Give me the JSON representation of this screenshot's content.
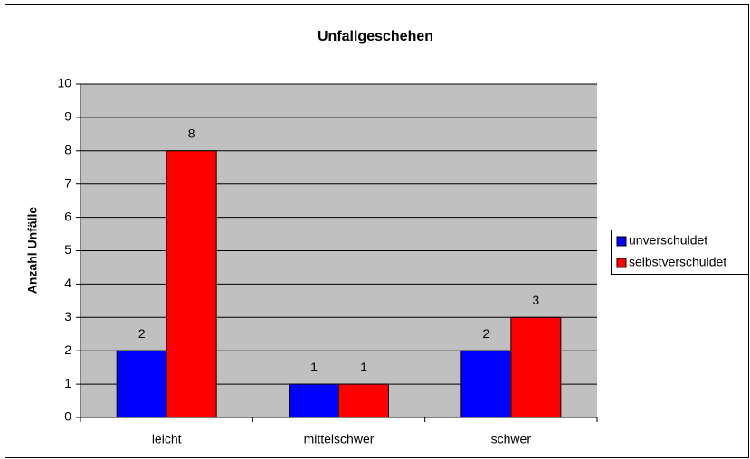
{
  "chart_data": {
    "type": "bar",
    "title": "Unfallgeschehen",
    "y_label": "Anzahl Unfälle",
    "categories": [
      "leicht",
      "mittelschwer",
      "schwer"
    ],
    "series": [
      {
        "name": "unverschuldet",
        "color": "#0000ff",
        "values": [
          2,
          1,
          2
        ]
      },
      {
        "name": "selbstverschuldet",
        "color": "#ff0000",
        "values": [
          8,
          1,
          3
        ]
      }
    ],
    "ylim": [
      0,
      10
    ],
    "yticks": [
      0,
      1,
      2,
      3,
      4,
      5,
      6,
      7,
      8,
      9,
      10
    ],
    "grid": true,
    "legend": "right",
    "plot_background": "#c0c0c0"
  }
}
